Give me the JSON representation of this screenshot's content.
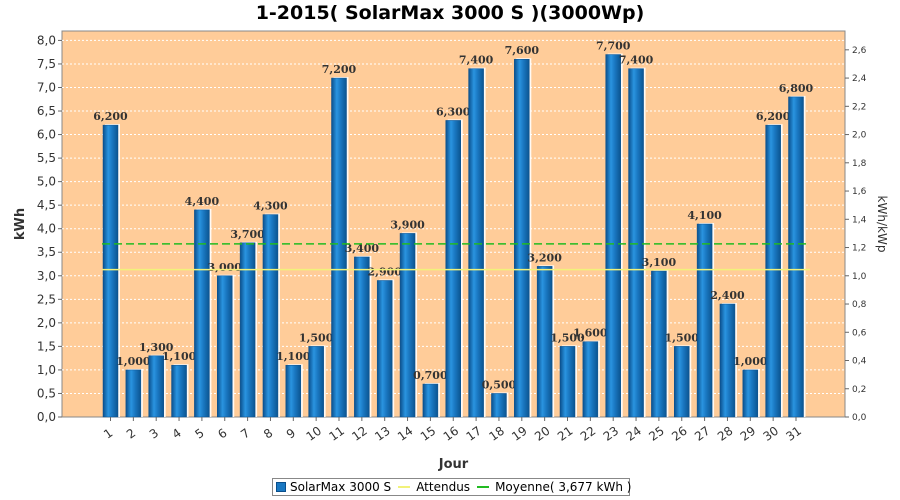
{
  "chart_data": {
    "type": "bar",
    "title": "1-2015( SolarMax 3000 S )(3000Wp)",
    "xlabel": "Jour",
    "ylabel": "kWh",
    "y2label": "kWh/kWp",
    "ylim": [
      0,
      8.2
    ],
    "y2lim": [
      0,
      2.7333
    ],
    "yticks": [
      "0,0",
      "0,5",
      "1,0",
      "1,5",
      "2,0",
      "2,5",
      "3,0",
      "3,5",
      "4,0",
      "4,5",
      "5,0",
      "5,5",
      "6,0",
      "6,5",
      "7,0",
      "7,5",
      "8,0"
    ],
    "y2ticks": [
      "0,0",
      "0,2",
      "0,4",
      "0,6",
      "0,8",
      "1,0",
      "1,2",
      "1,4",
      "1,6",
      "1,8",
      "2,0",
      "2,2",
      "2,4",
      "2,6"
    ],
    "categories": [
      "1",
      "2",
      "3",
      "4",
      "5",
      "6",
      "7",
      "8",
      "9",
      "10",
      "11",
      "12",
      "13",
      "14",
      "15",
      "16",
      "17",
      "18",
      "19",
      "20",
      "21",
      "22",
      "23",
      "24",
      "25",
      "26",
      "27",
      "28",
      "29",
      "30",
      "31"
    ],
    "series": [
      {
        "name": "SolarMax 3000 S",
        "values": [
          6.2,
          1.0,
          1.3,
          1.1,
          4.4,
          3.0,
          3.7,
          4.3,
          1.1,
          1.5,
          7.2,
          3.4,
          2.9,
          3.9,
          0.7,
          6.3,
          7.4,
          0.5,
          7.6,
          3.2,
          1.5,
          1.6,
          7.7,
          7.4,
          3.1,
          1.5,
          4.1,
          2.4,
          1.0,
          6.2,
          6.8
        ],
        "labels": [
          "6,200",
          "1,000",
          "1,300",
          "1,100",
          "4,400",
          "3,000",
          "3,700",
          "4,300",
          "1,100",
          "1,500",
          "7,200",
          "3,400",
          "2,900",
          "3,900",
          "0,700",
          "6,300",
          "7,400",
          "0,500",
          "7,600",
          "3,200",
          "1,500",
          "1,600",
          "7,700",
          "7,400",
          "3,100",
          "1,500",
          "4,100",
          "2,400",
          "1,000",
          "6,200",
          "6,800"
        ]
      }
    ],
    "reference_lines": [
      {
        "name": "Attendus",
        "value": 3.13,
        "color": "#f2f27a"
      },
      {
        "name": "Moyenne( 3,677 kWh )",
        "value": 3.677,
        "color": "#22bb22"
      }
    ],
    "grid": true,
    "legend_position": "bottom",
    "colors": {
      "bar": "#1a78c2",
      "plot_bg": "#ffcc99"
    }
  }
}
